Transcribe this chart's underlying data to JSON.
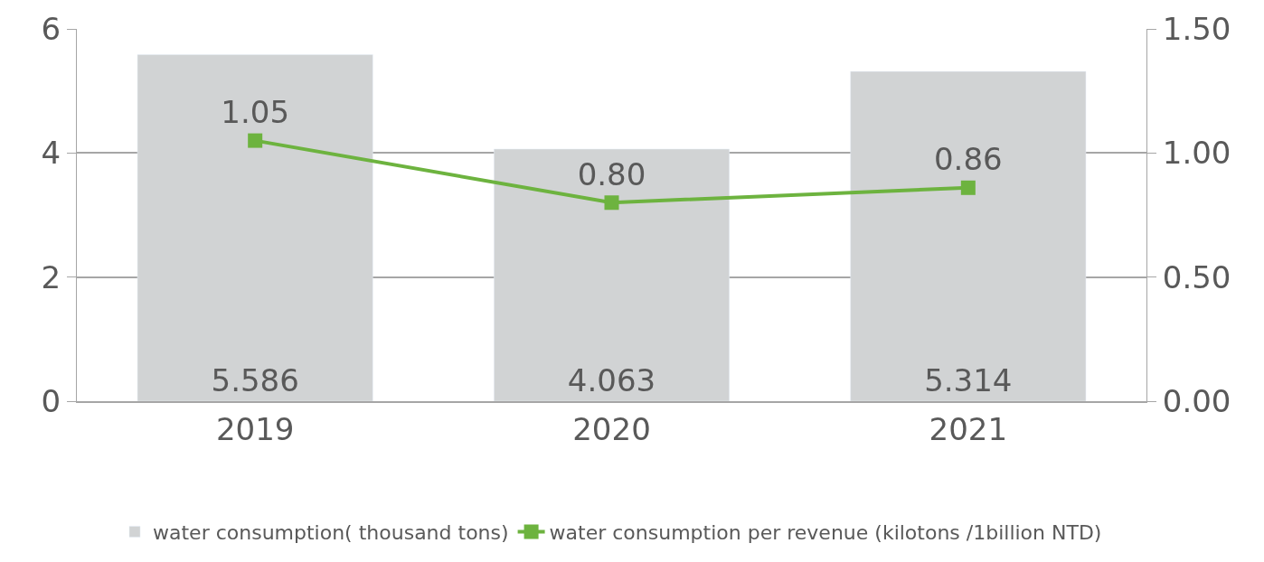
{
  "chart_data": {
    "type": "bar",
    "categories": [
      "2019",
      "2020",
      "2021"
    ],
    "series": [
      {
        "name": "water consumption( thousand tons)",
        "color": "#d1d3d4",
        "values": [
          5.586,
          4.063,
          5.314
        ],
        "value_labels": [
          "5.586",
          "4.063",
          "5.314"
        ]
      },
      {
        "name": "water consumption per revenue (kilotons /1billion NTD)",
        "type": "line",
        "axis": "y2",
        "color": "#6db33f",
        "marker": "square",
        "values": [
          1.05,
          0.8,
          0.86
        ],
        "value_labels": [
          "1.05",
          "0.80",
          "0.86"
        ]
      }
    ],
    "ylim": [
      0,
      6
    ],
    "yticks": [
      0,
      2,
      4,
      6
    ],
    "y2lim": [
      0,
      1.5
    ],
    "y2ticks": [
      {
        "value": 0,
        "label": "0.00"
      },
      {
        "value": 0.5,
        "label": "0.50"
      },
      {
        "value": 1,
        "label": "1.00"
      },
      {
        "value": 1.5,
        "label": "1.50"
      }
    ],
    "grid": "y",
    "legend": "bottom"
  }
}
